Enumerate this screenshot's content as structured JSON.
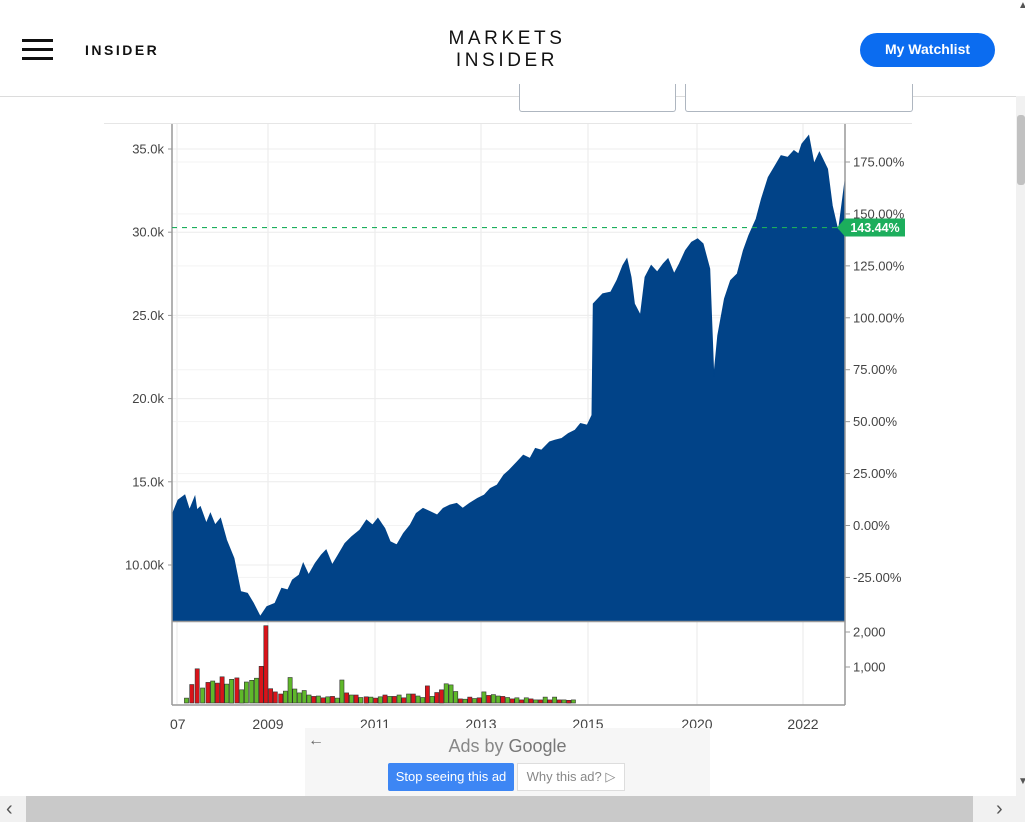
{
  "header": {
    "brand_small": "INSIDER",
    "logo_line1": "MARKETS",
    "logo_line2": "INSIDER",
    "watchlist_button": "My Watchlist"
  },
  "icons": {
    "menu": "hamburger-menu-icon",
    "ad_back": "arrow-left-icon",
    "ad_why": "play-outline-icon",
    "scroll_left": "chevron-left-icon",
    "scroll_right": "chevron-right-icon"
  },
  "colors": {
    "area_fill": "#014388",
    "volume_up": "#5fb82a",
    "volume_down": "#d9131a",
    "current_badge": "#1cae5c",
    "button": "#0b6cf0"
  },
  "chart_data": {
    "type": "area",
    "x_ticks": [
      "07",
      "2009",
      "2011",
      "2013",
      "2015",
      "2020",
      "2022"
    ],
    "y_left_ticks": [
      "35.0k",
      "30.0k",
      "25.0k",
      "20.0k",
      "15.0k",
      "10.00k"
    ],
    "y_left_values": [
      35000,
      30000,
      25000,
      20000,
      15000,
      10000
    ],
    "y_right_ticks": [
      "175.00%",
      "150.00%",
      "125.00%",
      "100.00%",
      "75.00%",
      "50.00%",
      "25.00%",
      "0.00%",
      "-25.00%"
    ],
    "y_right_values": [
      175,
      150,
      125,
      100,
      75,
      50,
      25,
      0,
      -25
    ],
    "volume_ticks": [
      "2,000",
      "1,000"
    ],
    "volume_values": [
      2000,
      1000
    ],
    "current_value_label": "143.44%",
    "current_value": 143.44,
    "series": [
      {
        "kind": "price",
        "points": [
          [
            0,
            13000
          ],
          [
            0.9,
            13900
          ],
          [
            1.9,
            14200
          ],
          [
            2.6,
            13300
          ],
          [
            3.4,
            14100
          ],
          [
            3.7,
            13300
          ],
          [
            4.2,
            13500
          ],
          [
            5.1,
            12500
          ],
          [
            5.7,
            13100
          ],
          [
            6.4,
            12400
          ],
          [
            7.2,
            12800
          ],
          [
            8.1,
            11500
          ],
          [
            9.2,
            10400
          ],
          [
            10.2,
            8400
          ],
          [
            11.2,
            8300
          ],
          [
            12.1,
            7700
          ],
          [
            13.1,
            6900
          ],
          [
            14.1,
            7500
          ],
          [
            15.3,
            7700
          ],
          [
            16.3,
            8600
          ],
          [
            17.2,
            8500
          ],
          [
            17.9,
            9100
          ],
          [
            18.9,
            9400
          ],
          [
            19.5,
            10100
          ],
          [
            20.3,
            9400
          ],
          [
            21.3,
            10100
          ],
          [
            22.2,
            10600
          ],
          [
            22.9,
            10900
          ],
          [
            23.8,
            10000
          ],
          [
            24.7,
            10600
          ],
          [
            25.7,
            11300
          ],
          [
            26.7,
            11700
          ],
          [
            27.9,
            12100
          ],
          [
            28.9,
            12700
          ],
          [
            29.8,
            12400
          ],
          [
            30.6,
            12800
          ],
          [
            31.6,
            12200
          ],
          [
            32.4,
            11400
          ],
          [
            33.4,
            11200
          ],
          [
            34.4,
            11900
          ],
          [
            35.4,
            12400
          ],
          [
            36.3,
            13100
          ],
          [
            37.3,
            13400
          ],
          [
            38.4,
            13200
          ],
          [
            39.4,
            13000
          ],
          [
            40.3,
            13400
          ],
          [
            41.3,
            13600
          ],
          [
            42.3,
            13700
          ],
          [
            43.2,
            13400
          ],
          [
            44.2,
            13700
          ],
          [
            45.4,
            14000
          ],
          [
            46.4,
            14200
          ],
          [
            47.3,
            14600
          ],
          [
            48.3,
            14800
          ],
          [
            49.3,
            15400
          ],
          [
            50.1,
            15700
          ],
          [
            51.3,
            16200
          ],
          [
            52.2,
            16600
          ],
          [
            53.2,
            16400
          ],
          [
            54.0,
            17000
          ],
          [
            54.9,
            16900
          ],
          [
            56.1,
            17400
          ],
          [
            56.9,
            17500
          ],
          [
            57.9,
            17600
          ],
          [
            58.9,
            17900
          ],
          [
            59.9,
            18100
          ],
          [
            60.7,
            18500
          ],
          [
            61.7,
            18400
          ],
          [
            62.4,
            19000
          ],
          [
            62.6,
            25700
          ],
          [
            64.0,
            26300
          ],
          [
            65.2,
            26400
          ],
          [
            66.1,
            27100
          ],
          [
            67.0,
            28000
          ],
          [
            67.6,
            28400
          ],
          [
            68.2,
            27300
          ],
          [
            68.7,
            25700
          ],
          [
            69.6,
            25000
          ],
          [
            70.3,
            27300
          ],
          [
            71.2,
            28000
          ],
          [
            72.1,
            27600
          ],
          [
            73.0,
            28100
          ],
          [
            73.7,
            28400
          ],
          [
            74.6,
            27500
          ],
          [
            75.4,
            28100
          ],
          [
            76.3,
            28900
          ],
          [
            77.2,
            29400
          ],
          [
            78.1,
            29600
          ],
          [
            78.9,
            29300
          ],
          [
            79.9,
            27800
          ],
          [
            80.5,
            21300
          ],
          [
            81.1,
            23800
          ],
          [
            82.1,
            26000
          ],
          [
            83.0,
            27100
          ],
          [
            84.0,
            27500
          ],
          [
            84.9,
            28900
          ],
          [
            85.7,
            29800
          ],
          [
            86.8,
            30800
          ],
          [
            87.6,
            32000
          ],
          [
            88.6,
            33300
          ],
          [
            89.5,
            33900
          ],
          [
            90.5,
            34600
          ],
          [
            91.5,
            34500
          ],
          [
            92.4,
            34900
          ],
          [
            93.1,
            34700
          ],
          [
            93.6,
            35300
          ],
          [
            94.6,
            35800
          ],
          [
            95.4,
            34100
          ],
          [
            96.2,
            34800
          ],
          [
            97.4,
            33800
          ],
          [
            98.1,
            31600
          ],
          [
            99.0,
            30000
          ],
          [
            100,
            33100
          ]
        ]
      },
      {
        "kind": "volume",
        "bars": [
          [
            0.5,
            110,
            "up"
          ],
          [
            1.3,
            500,
            "down"
          ],
          [
            2.1,
            950,
            "down"
          ],
          [
            2.9,
            400,
            "up"
          ],
          [
            3.7,
            560,
            "down"
          ],
          [
            4.4,
            600,
            "up"
          ],
          [
            5.1,
            540,
            "down"
          ],
          [
            5.8,
            720,
            "down"
          ],
          [
            6.5,
            510,
            "up"
          ],
          [
            7.2,
            650,
            "up"
          ],
          [
            8.0,
            690,
            "down"
          ],
          [
            8.7,
            350,
            "up"
          ],
          [
            9.4,
            570,
            "up"
          ],
          [
            10.2,
            620,
            "up"
          ],
          [
            10.9,
            680,
            "up"
          ],
          [
            11.6,
            1020,
            "down"
          ],
          [
            12.3,
            2180,
            "down"
          ],
          [
            13.0,
            380,
            "down"
          ],
          [
            13.7,
            290,
            "down"
          ],
          [
            14.5,
            230,
            "down"
          ],
          [
            15.2,
            310,
            "up"
          ],
          [
            15.9,
            700,
            "up"
          ],
          [
            16.6,
            370,
            "up"
          ],
          [
            17.3,
            260,
            "up"
          ],
          [
            18.0,
            330,
            "up"
          ],
          [
            18.7,
            200,
            "up"
          ],
          [
            19.4,
            160,
            "down"
          ],
          [
            20.1,
            170,
            "up"
          ],
          [
            20.8,
            120,
            "down"
          ],
          [
            21.5,
            150,
            "up"
          ],
          [
            22.2,
            160,
            "down"
          ],
          [
            22.9,
            110,
            "up"
          ],
          [
            23.6,
            630,
            "up"
          ],
          [
            24.3,
            260,
            "down"
          ],
          [
            25.0,
            200,
            "up"
          ],
          [
            25.7,
            200,
            "down"
          ],
          [
            26.4,
            130,
            "up"
          ],
          [
            27.2,
            150,
            "down"
          ],
          [
            27.9,
            140,
            "up"
          ],
          [
            28.6,
            110,
            "down"
          ],
          [
            29.3,
            150,
            "up"
          ],
          [
            30.0,
            200,
            "down"
          ],
          [
            30.7,
            160,
            "up"
          ],
          [
            31.4,
            160,
            "down"
          ],
          [
            32.1,
            200,
            "up"
          ],
          [
            32.8,
            120,
            "down"
          ],
          [
            33.5,
            230,
            "up"
          ],
          [
            34.2,
            230,
            "down"
          ],
          [
            34.9,
            170,
            "up"
          ],
          [
            35.6,
            130,
            "up"
          ],
          [
            36.3,
            460,
            "down"
          ],
          [
            37.0,
            160,
            "up"
          ],
          [
            37.7,
            270,
            "down"
          ],
          [
            38.4,
            350,
            "down"
          ],
          [
            39.1,
            520,
            "up"
          ],
          [
            39.8,
            490,
            "up"
          ],
          [
            40.5,
            300,
            "up"
          ],
          [
            41.2,
            90,
            "down"
          ],
          [
            41.9,
            80,
            "up"
          ],
          [
            42.6,
            140,
            "down"
          ],
          [
            43.3,
            100,
            "up"
          ],
          [
            44.0,
            120,
            "down"
          ],
          [
            44.7,
            290,
            "up"
          ],
          [
            45.4,
            190,
            "down"
          ],
          [
            46.1,
            210,
            "up"
          ],
          [
            46.8,
            170,
            "up"
          ],
          [
            47.5,
            160,
            "down"
          ],
          [
            48.2,
            130,
            "up"
          ],
          [
            48.9,
            90,
            "down"
          ],
          [
            49.6,
            120,
            "up"
          ],
          [
            50.3,
            60,
            "down"
          ],
          [
            51.0,
            120,
            "up"
          ],
          [
            51.7,
            90,
            "down"
          ],
          [
            52.4,
            60,
            "up"
          ],
          [
            53.1,
            60,
            "down"
          ],
          [
            53.8,
            140,
            "up"
          ],
          [
            54.5,
            60,
            "down"
          ],
          [
            55.2,
            140,
            "up"
          ],
          [
            55.9,
            60,
            "down"
          ],
          [
            56.6,
            60,
            "up"
          ],
          [
            57.3,
            50,
            "down"
          ],
          [
            58.0,
            60,
            "up"
          ]
        ]
      }
    ]
  },
  "ad": {
    "title_prefix": "Ads by ",
    "title_brand": "Google",
    "stop_button": "Stop seeing this ad",
    "why_button": "Why this ad?"
  }
}
